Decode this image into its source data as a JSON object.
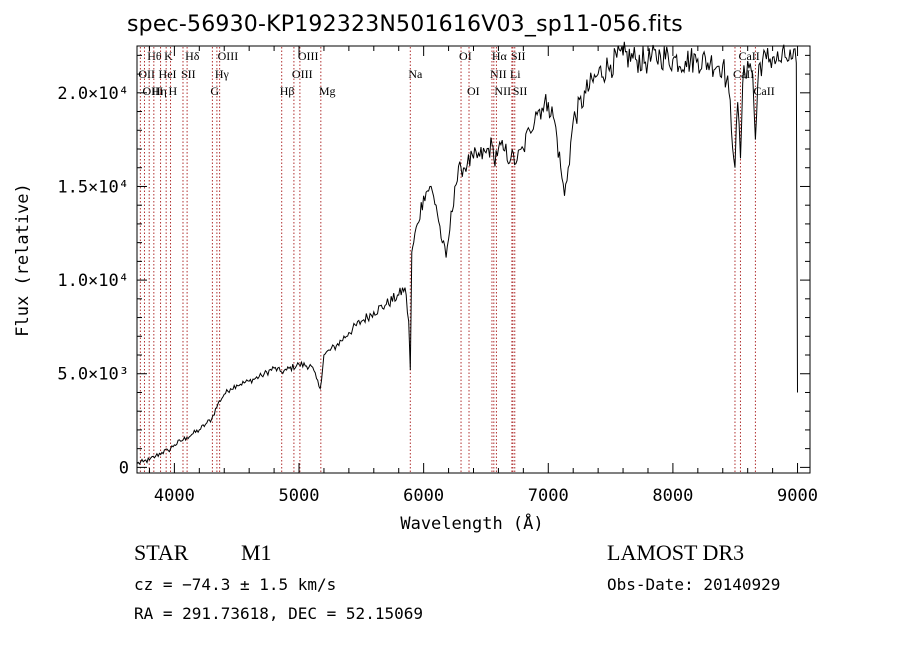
{
  "header": {
    "title": "spec-56930-KP192323N501616V03_sp11-056.fits"
  },
  "info": {
    "object_type": "STAR",
    "subclass": "M1",
    "survey": "LAMOST DR3",
    "redshift": "cz = −74.3 ± 1.5 km/s",
    "obs_date": "Obs-Date: 20140929",
    "coords": "RA = 291.73618, DEC =  52.15069"
  },
  "chart_data": {
    "type": "line",
    "title": "spec-56930-KP192323N501616V03_sp11-056.fits",
    "xlabel": "Wavelength (Å)",
    "ylabel": "Flux (relative)",
    "xlim": [
      3700,
      9100
    ],
    "ylim": [
      -300,
      22500
    ],
    "x_ticks": [
      4000,
      5000,
      6000,
      7000,
      8000,
      9000
    ],
    "x_tick_labels": [
      "4000",
      "5000",
      "6000",
      "7000",
      "8000",
      "9000"
    ],
    "y_ticks": [
      0,
      5000,
      10000,
      15000,
      20000
    ],
    "y_tick_labels": [
      "0",
      "5.0×10³",
      "1.0×10⁴",
      "1.5×10⁴",
      "2.0×10⁴"
    ],
    "line_color": "#000000",
    "marker_color": "#b03030",
    "series": [
      {
        "name": "flux",
        "x": [
          3700,
          3750,
          3800,
          3850,
          3900,
          3950,
          4000,
          4050,
          4100,
          4150,
          4200,
          4250,
          4300,
          4350,
          4400,
          4450,
          4500,
          4600,
          4700,
          4800,
          4860,
          4900,
          5000,
          5100,
          5170,
          5200,
          5300,
          5400,
          5500,
          5600,
          5700,
          5800,
          5850,
          5880,
          5893,
          5905,
          5920,
          5950,
          6000,
          6050,
          6100,
          6150,
          6180,
          6200,
          6250,
          6300,
          6350,
          6400,
          6450,
          6500,
          6550,
          6563,
          6600,
          6650,
          6700,
          6750,
          6800,
          6850,
          6900,
          6950,
          7000,
          7050,
          7100,
          7130,
          7160,
          7200,
          7300,
          7400,
          7500,
          7600,
          7700,
          7800,
          7900,
          8000,
          8100,
          8200,
          8300,
          8400,
          8450,
          8498,
          8520,
          8542,
          8560,
          8600,
          8640,
          8662,
          8690,
          8750,
          8800,
          8850,
          8900,
          8950,
          8990,
          9000
        ],
        "values": [
          200,
          300,
          400,
          600,
          800,
          900,
          1200,
          1400,
          1600,
          1800,
          2000,
          2300,
          2600,
          3400,
          3900,
          4200,
          4400,
          4600,
          4900,
          5300,
          5100,
          5200,
          5500,
          5400,
          4200,
          6000,
          6500,
          7200,
          7800,
          8300,
          8700,
          9200,
          9600,
          7800,
          5200,
          11500,
          12000,
          13000,
          14500,
          15000,
          14000,
          12000,
          11200,
          12200,
          15000,
          16000,
          16200,
          16500,
          16600,
          16800,
          17200,
          16500,
          17000,
          16900,
          16500,
          16400,
          17000,
          18000,
          19000,
          19200,
          19500,
          18500,
          16000,
          14500,
          16000,
          18500,
          20000,
          21000,
          21500,
          22000,
          21800,
          21700,
          22000,
          21800,
          21700,
          21800,
          21600,
          21500,
          20000,
          16000,
          19500,
          16500,
          20500,
          21700,
          21000,
          17500,
          21500,
          21800,
          21900,
          21700,
          21900,
          21800,
          21600,
          4000
        ]
      }
    ],
    "line_markers": [
      {
        "label": "Hθ",
        "x": 3798,
        "row": 1
      },
      {
        "label": "OII",
        "x": 3727,
        "row": 2
      },
      {
        "label": "OIII",
        "x": 3760,
        "row": 3
      },
      {
        "label": "K",
        "x": 3934,
        "row": 1
      },
      {
        "label": "HeI",
        "x": 3889,
        "row": 2
      },
      {
        "label": "Hη",
        "x": 3835,
        "row": 3
      },
      {
        "label": "H",
        "x": 3969,
        "row": 3
      },
      {
        "label": "Hδ",
        "x": 4102,
        "row": 1
      },
      {
        "label": "SII",
        "x": 4069,
        "row": 2
      },
      {
        "label": "OIII",
        "x": 4363,
        "row": 1
      },
      {
        "label": "Hγ",
        "x": 4341,
        "row": 2
      },
      {
        "label": "G",
        "x": 4305,
        "row": 3
      },
      {
        "label": "Hβ",
        "x": 4861,
        "row": 3
      },
      {
        "label": "OIII",
        "x": 5007,
        "row": 1
      },
      {
        "label": "OIII",
        "x": 4959,
        "row": 2
      },
      {
        "label": "Mg",
        "x": 5175,
        "row": 3
      },
      {
        "label": "Na",
        "x": 5893,
        "row": 2
      },
      {
        "label": "OI",
        "x": 6300,
        "row": 1
      },
      {
        "label": "OI",
        "x": 6364,
        "row": 3
      },
      {
        "label": "Hα",
        "x": 6563,
        "row": 1
      },
      {
        "label": "NII",
        "x": 6548,
        "row": 2
      },
      {
        "label": "NII",
        "x": 6584,
        "row": 3
      },
      {
        "label": "SII",
        "x": 6716,
        "row": 1
      },
      {
        "label": "Li",
        "x": 6708,
        "row": 2
      },
      {
        "label": "SII",
        "x": 6731,
        "row": 3
      },
      {
        "label": "CaII",
        "x": 8542,
        "row": 1
      },
      {
        "label": "CaII",
        "x": 8498,
        "row": 2
      },
      {
        "label": "CaII",
        "x": 8662,
        "row": 3
      }
    ]
  }
}
